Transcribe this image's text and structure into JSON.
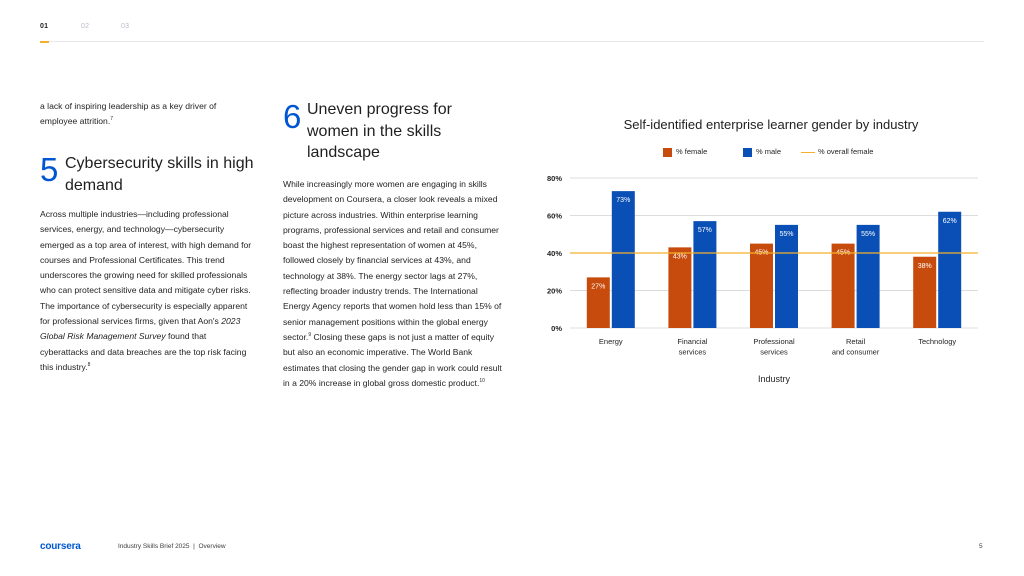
{
  "nav": {
    "tabs": [
      "01",
      "02",
      "03"
    ]
  },
  "left_column": {
    "intro_text": "a lack of inspiring leadership as a key driver of employee attrition.",
    "intro_sup": "7",
    "section_number": "5",
    "section_title": "Cybersecurity skills in high demand",
    "para_1": "Across multiple industries—including professional services, energy, and technology—cybersecurity emerged as a top area of interest, with high demand for courses and Professional Certificates. This trend underscores the growing need for skilled professionals who can protect sensitive data and mitigate cyber risks. The importance of cybersecurity is especially apparent for professional services firms, given that Aon's ",
    "para_italic": "2023 Global Risk Management Survey",
    "para_2": " found that cyberattacks and data breaches are the top risk facing this industry.",
    "para_sup": "8"
  },
  "middle_column": {
    "section_number": "6",
    "section_title": "Uneven progress for women in the skills landscape",
    "para_1": "While increasingly more women are engaging in skills development on Coursera, a closer look reveals a mixed picture across industries. Within enterprise learning programs, professional services and retail and consumer boast the highest representation of women at 45%, followed closely by financial services at 43%, and technology at 38%. The energy sector lags at 27%, reflecting broader industry trends. The International Energy Agency reports that women hold less than 15% of senior management positions within the global energy sector.",
    "para_sup_1": "9",
    "para_2": " Closing these gaps is not just a matter of equity but also an economic imperative. The World Bank estimates that closing the gender gap in work could result in a 20% increase in global gross domestic product.",
    "para_sup_2": "10"
  },
  "chart_data": {
    "type": "bar",
    "title": "Self-identified enterprise learner gender by industry",
    "xlabel": "Industry",
    "ylabel": "",
    "categories": [
      "Energy",
      "Financial services",
      "Professional services",
      "Retail and consumer",
      "Technology"
    ],
    "series": [
      {
        "name": "% female",
        "values": [
          27,
          43,
          45,
          45,
          38
        ],
        "color": "#c64b0c"
      },
      {
        "name": "% male",
        "values": [
          73,
          57,
          55,
          55,
          62
        ],
        "color": "#0a4fb5"
      }
    ],
    "reference_line": {
      "name": "% overall female",
      "value": 40,
      "color": "#f4b02b"
    },
    "ylim": [
      0,
      80
    ],
    "yticks": [
      "0%",
      "20%",
      "40%",
      "60%",
      "80%"
    ],
    "ytick_values": [
      0,
      20,
      40,
      60,
      80
    ],
    "grid": true,
    "legend_position": "top-center"
  },
  "footer": {
    "logo": "coursera",
    "doc_title": "Industry Skills Brief 2025",
    "separator": "|",
    "section": "Overview",
    "page_number": "5"
  }
}
